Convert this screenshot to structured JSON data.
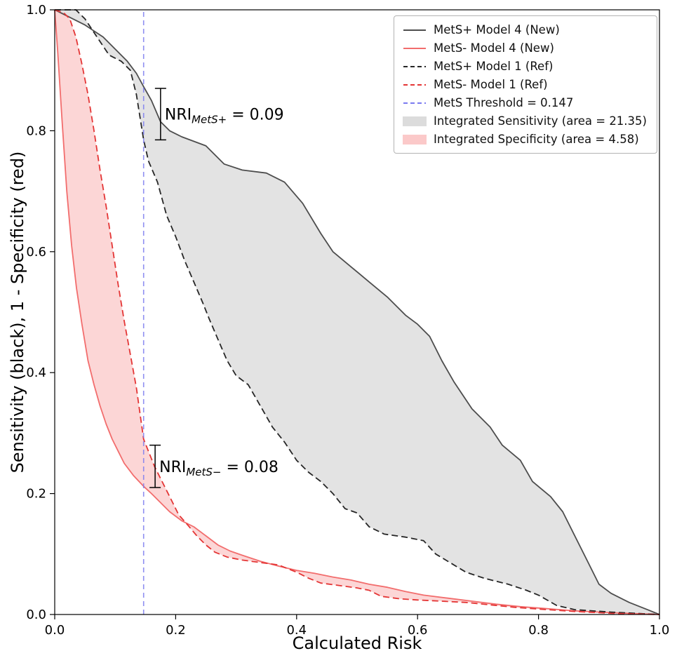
{
  "chart_data": {
    "type": "line",
    "title": "",
    "xlabel": "Calculated Risk",
    "ylabel": "Sensitivity (black), 1 - Specificity (red)",
    "xlim": [
      0.0,
      1.0
    ],
    "ylim": [
      0.0,
      1.0
    ],
    "xticks": [
      0.0,
      0.2,
      0.4,
      0.6,
      0.8,
      1.0
    ],
    "yticks": [
      0.0,
      0.2,
      0.4,
      0.6,
      0.8,
      1.0
    ],
    "grid": false,
    "legend_position": "upper right",
    "threshold": {
      "label": "MetS Threshold = 0.147",
      "x": 0.147,
      "color": "#7b7bf0",
      "style": "dashed"
    },
    "series": [
      {
        "name": "MetS+ Model 4 (New)",
        "color": "#4d4d4d",
        "style": "solid",
        "points": [
          [
            0,
            1.0
          ],
          [
            0.02,
            0.99
          ],
          [
            0.05,
            0.975
          ],
          [
            0.08,
            0.955
          ],
          [
            0.1,
            0.935
          ],
          [
            0.12,
            0.915
          ],
          [
            0.135,
            0.895
          ],
          [
            0.147,
            0.873
          ],
          [
            0.16,
            0.85
          ],
          [
            0.175,
            0.815
          ],
          [
            0.19,
            0.8
          ],
          [
            0.21,
            0.79
          ],
          [
            0.25,
            0.775
          ],
          [
            0.28,
            0.745
          ],
          [
            0.31,
            0.735
          ],
          [
            0.35,
            0.73
          ],
          [
            0.38,
            0.715
          ],
          [
            0.41,
            0.68
          ],
          [
            0.44,
            0.63
          ],
          [
            0.46,
            0.6
          ],
          [
            0.49,
            0.575
          ],
          [
            0.52,
            0.55
          ],
          [
            0.55,
            0.525
          ],
          [
            0.58,
            0.495
          ],
          [
            0.6,
            0.48
          ],
          [
            0.62,
            0.46
          ],
          [
            0.64,
            0.42
          ],
          [
            0.66,
            0.385
          ],
          [
            0.69,
            0.34
          ],
          [
            0.72,
            0.31
          ],
          [
            0.74,
            0.28
          ],
          [
            0.77,
            0.255
          ],
          [
            0.79,
            0.22
          ],
          [
            0.82,
            0.195
          ],
          [
            0.84,
            0.17
          ],
          [
            0.86,
            0.13
          ],
          [
            0.88,
            0.09
          ],
          [
            0.9,
            0.05
          ],
          [
            0.92,
            0.035
          ],
          [
            0.95,
            0.02
          ],
          [
            0.98,
            0.008
          ],
          [
            1.0,
            0.0
          ]
        ]
      },
      {
        "name": "MetS- Model 4 (New)",
        "color": "#f26d6d",
        "style": "solid",
        "points": [
          [
            0,
            1.0
          ],
          [
            0.005,
            0.93
          ],
          [
            0.012,
            0.82
          ],
          [
            0.02,
            0.7
          ],
          [
            0.028,
            0.61
          ],
          [
            0.036,
            0.54
          ],
          [
            0.045,
            0.48
          ],
          [
            0.055,
            0.42
          ],
          [
            0.065,
            0.38
          ],
          [
            0.075,
            0.345
          ],
          [
            0.085,
            0.315
          ],
          [
            0.095,
            0.29
          ],
          [
            0.105,
            0.27
          ],
          [
            0.115,
            0.25
          ],
          [
            0.13,
            0.23
          ],
          [
            0.147,
            0.212
          ],
          [
            0.16,
            0.2
          ],
          [
            0.175,
            0.185
          ],
          [
            0.19,
            0.17
          ],
          [
            0.21,
            0.155
          ],
          [
            0.23,
            0.145
          ],
          [
            0.25,
            0.13
          ],
          [
            0.27,
            0.115
          ],
          [
            0.29,
            0.105
          ],
          [
            0.31,
            0.098
          ],
          [
            0.34,
            0.088
          ],
          [
            0.37,
            0.08
          ],
          [
            0.4,
            0.073
          ],
          [
            0.43,
            0.068
          ],
          [
            0.46,
            0.062
          ],
          [
            0.49,
            0.057
          ],
          [
            0.52,
            0.05
          ],
          [
            0.55,
            0.045
          ],
          [
            0.58,
            0.038
          ],
          [
            0.61,
            0.032
          ],
          [
            0.65,
            0.027
          ],
          [
            0.69,
            0.022
          ],
          [
            0.73,
            0.017
          ],
          [
            0.77,
            0.013
          ],
          [
            0.81,
            0.01
          ],
          [
            0.86,
            0.006
          ],
          [
            0.92,
            0.003
          ],
          [
            1.0,
            0.0
          ]
        ]
      },
      {
        "name": "MetS+ Model 1 (Ref)",
        "color": "#262626",
        "style": "dashed",
        "points": [
          [
            0,
            1.0
          ],
          [
            0.035,
            1.0
          ],
          [
            0.05,
            0.985
          ],
          [
            0.07,
            0.955
          ],
          [
            0.09,
            0.925
          ],
          [
            0.11,
            0.915
          ],
          [
            0.125,
            0.9
          ],
          [
            0.135,
            0.86
          ],
          [
            0.147,
            0.785
          ],
          [
            0.155,
            0.75
          ],
          [
            0.17,
            0.715
          ],
          [
            0.185,
            0.66
          ],
          [
            0.2,
            0.625
          ],
          [
            0.215,
            0.585
          ],
          [
            0.23,
            0.55
          ],
          [
            0.245,
            0.515
          ],
          [
            0.255,
            0.49
          ],
          [
            0.27,
            0.455
          ],
          [
            0.285,
            0.42
          ],
          [
            0.3,
            0.395
          ],
          [
            0.32,
            0.38
          ],
          [
            0.34,
            0.345
          ],
          [
            0.36,
            0.31
          ],
          [
            0.38,
            0.285
          ],
          [
            0.4,
            0.255
          ],
          [
            0.42,
            0.235
          ],
          [
            0.44,
            0.22
          ],
          [
            0.46,
            0.2
          ],
          [
            0.48,
            0.175
          ],
          [
            0.5,
            0.168
          ],
          [
            0.52,
            0.145
          ],
          [
            0.545,
            0.133
          ],
          [
            0.58,
            0.128
          ],
          [
            0.61,
            0.122
          ],
          [
            0.63,
            0.1
          ],
          [
            0.65,
            0.088
          ],
          [
            0.68,
            0.07
          ],
          [
            0.71,
            0.06
          ],
          [
            0.75,
            0.05
          ],
          [
            0.78,
            0.04
          ],
          [
            0.8,
            0.032
          ],
          [
            0.83,
            0.015
          ],
          [
            0.86,
            0.008
          ],
          [
            0.92,
            0.004
          ],
          [
            1.0,
            0.0
          ]
        ]
      },
      {
        "name": "MetS- Model 1 (Ref)",
        "color": "#e43535",
        "style": "dashed",
        "points": [
          [
            0,
            1.0
          ],
          [
            0.015,
            0.995
          ],
          [
            0.025,
            0.985
          ],
          [
            0.035,
            0.955
          ],
          [
            0.045,
            0.91
          ],
          [
            0.055,
            0.86
          ],
          [
            0.065,
            0.8
          ],
          [
            0.075,
            0.735
          ],
          [
            0.085,
            0.675
          ],
          [
            0.095,
            0.61
          ],
          [
            0.105,
            0.545
          ],
          [
            0.115,
            0.485
          ],
          [
            0.125,
            0.43
          ],
          [
            0.135,
            0.375
          ],
          [
            0.147,
            0.29
          ],
          [
            0.155,
            0.27
          ],
          [
            0.165,
            0.245
          ],
          [
            0.175,
            0.225
          ],
          [
            0.185,
            0.205
          ],
          [
            0.195,
            0.185
          ],
          [
            0.205,
            0.165
          ],
          [
            0.22,
            0.148
          ],
          [
            0.235,
            0.13
          ],
          [
            0.25,
            0.115
          ],
          [
            0.265,
            0.103
          ],
          [
            0.285,
            0.095
          ],
          [
            0.31,
            0.09
          ],
          [
            0.34,
            0.086
          ],
          [
            0.37,
            0.082
          ],
          [
            0.4,
            0.07
          ],
          [
            0.42,
            0.06
          ],
          [
            0.44,
            0.052
          ],
          [
            0.47,
            0.048
          ],
          [
            0.5,
            0.044
          ],
          [
            0.52,
            0.04
          ],
          [
            0.54,
            0.03
          ],
          [
            0.57,
            0.026
          ],
          [
            0.6,
            0.024
          ],
          [
            0.64,
            0.022
          ],
          [
            0.68,
            0.02
          ],
          [
            0.72,
            0.016
          ],
          [
            0.76,
            0.012
          ],
          [
            0.8,
            0.009
          ],
          [
            0.86,
            0.005
          ],
          [
            0.92,
            0.002
          ],
          [
            1.0,
            0.0
          ]
        ]
      }
    ],
    "fills": [
      {
        "name": "Integrated Sensitivity (area = 21.35)",
        "between": [
          0,
          2
        ],
        "color": "#c8c8c8",
        "opacity": 0.5
      },
      {
        "name": "Integrated Specificity (area = 4.58)",
        "between": [
          3,
          1
        ],
        "color": "#f79999",
        "opacity": 0.4
      }
    ],
    "annotations": [
      {
        "prefix": "NRI",
        "sub": "MetS+",
        "suffix": " = 0.09",
        "x": 0.182,
        "y": 0.828,
        "bracket": {
          "x": 0.175,
          "y1": 0.785,
          "y2": 0.87
        }
      },
      {
        "prefix": "NRI",
        "sub": "MetS−",
        "suffix": " = 0.08",
        "x": 0.173,
        "y": 0.245,
        "bracket": {
          "x": 0.166,
          "y1": 0.21,
          "y2": 0.28
        }
      }
    ],
    "legend": [
      {
        "label": "MetS+ Model 4 (New)",
        "swatch": "line-solid",
        "color": "#4d4d4d"
      },
      {
        "label": "MetS- Model 4 (New)",
        "swatch": "line-solid",
        "color": "#f26d6d"
      },
      {
        "label": "MetS+ Model 1 (Ref)",
        "swatch": "line-dashed",
        "color": "#262626"
      },
      {
        "label": "MetS- Model 1 (Ref)",
        "swatch": "line-dashed",
        "color": "#e43535"
      },
      {
        "label": "MetS Threshold = 0.147",
        "swatch": "line-dashed",
        "color": "#7b7bf0"
      },
      {
        "label": "Integrated Sensitivity (area = 21.35)",
        "swatch": "patch",
        "color": "#dcdcdc"
      },
      {
        "label": "Integrated Specificity (area = 4.58)",
        "swatch": "patch",
        "color": "#fbc9c9"
      }
    ]
  }
}
